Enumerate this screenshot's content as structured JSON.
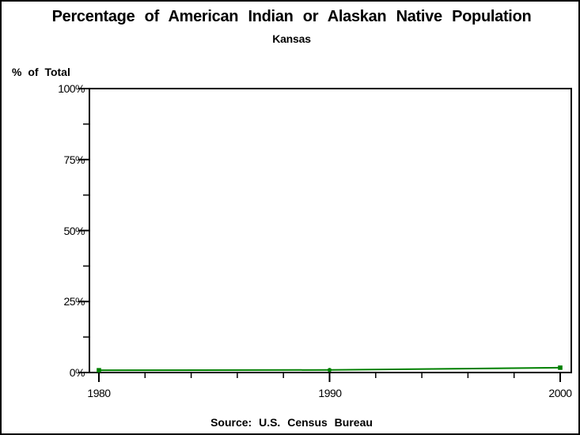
{
  "chart_data": {
    "type": "line",
    "title": "Percentage of American Indian or Alaskan Native Population",
    "subtitle": "Kansas",
    "ylabel": "% of Total",
    "source": "Source: U.S. Census Bureau",
    "x": [
      1980,
      1990,
      2000
    ],
    "series": [
      {
        "name": "Kansas",
        "values": [
          0.8,
          0.9,
          1.7
        ],
        "markers": [
          "square",
          "circle",
          "square"
        ]
      }
    ],
    "line_color": "#008000",
    "axis_color": "#000000",
    "xlim": [
      1980,
      2000
    ],
    "ylim": [
      0,
      100
    ],
    "ytick_labels": [
      "100%",
      "75%",
      "50%",
      "25%",
      "0%"
    ],
    "ytick_values": [
      100,
      75,
      50,
      25,
      0
    ],
    "y_minor_values": [
      87.5,
      62.5,
      37.5,
      12.5
    ],
    "xtick_labels": [
      "1980",
      "1990",
      "2000"
    ],
    "xtick_values": [
      1980,
      1990,
      2000
    ],
    "x_minor_values": [
      1982,
      1984,
      1986,
      1988,
      1992,
      1994,
      1996,
      1998
    ],
    "grid": "off",
    "legend": "none"
  }
}
